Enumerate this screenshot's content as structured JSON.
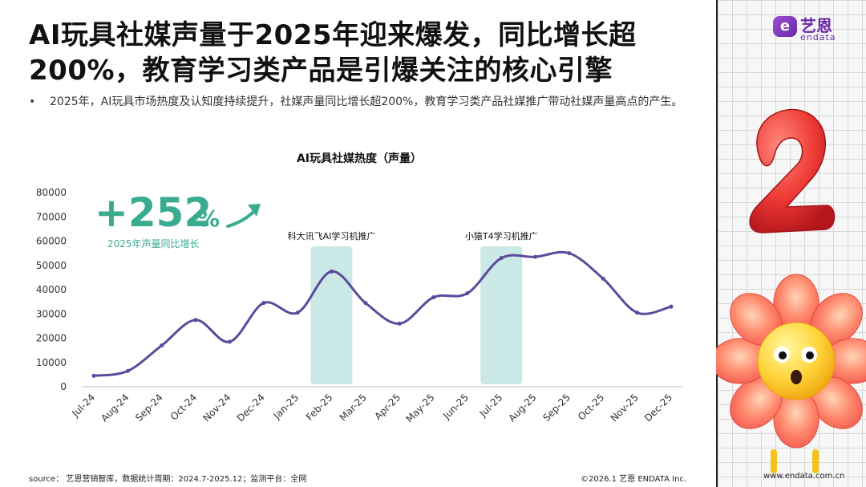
{
  "slide": {
    "title": "AI玩具社媒声量于2025年迎来爆发，同比增长超200%，教育学习类产品是引爆关注的核心引擎",
    "bullet": "2025年，AI玩具市场热度及认知度持续提升，社媒声量同比增长超200%，教育学习类产品社媒推广带动社媒声量高点的产生。"
  },
  "logo": {
    "mark": "e",
    "name_cn": "艺恩",
    "name_en": "endata"
  },
  "colors": {
    "line": "#5b4a9b",
    "highlight": "#c9e8e6",
    "accent": "#3bab8f",
    "axis": "#333333"
  },
  "chart_data": {
    "type": "line",
    "title": "AI玩具社媒热度（声量）",
    "categories": [
      "Jul-24",
      "Aug-24",
      "Sep-24",
      "Oct-24",
      "Nov-24",
      "Dec-24",
      "Jan-25",
      "Feb-25",
      "Mar-25",
      "Apr-25",
      "May-25",
      "Jun-25",
      "Jul-25",
      "Aug-25",
      "Sep-25",
      "Oct-25",
      "Nov-25",
      "Dec-25"
    ],
    "values": [
      4500,
      6500,
      17000,
      27500,
      18500,
      34500,
      30500,
      47500,
      34500,
      26000,
      36800,
      38500,
      53000,
      53500,
      55000,
      44500,
      30500,
      33000
    ],
    "ylim": [
      0,
      80000
    ],
    "yticks": [
      0,
      10000,
      20000,
      30000,
      40000,
      50000,
      60000,
      70000,
      80000
    ],
    "grid": false,
    "highlights": [
      {
        "index": 7,
        "label": "科大讯飞AI学习机推广"
      },
      {
        "index": 12,
        "label": "小猿T4学习机推广"
      }
    ],
    "kpi": {
      "value": "+252",
      "unit": "%",
      "label": "2025年声量同比增长"
    }
  },
  "footer": {
    "source": "source： 艺恩营销智库，数据统计周期：2024.7-2025.12；监测平台：全网",
    "copyright": "©2026.1  艺恩 ENDATA Inc.",
    "url": "www.endata.com.cn"
  },
  "decor": {
    "number_art": "2",
    "icon_flower": "flower-mascot-icon"
  }
}
